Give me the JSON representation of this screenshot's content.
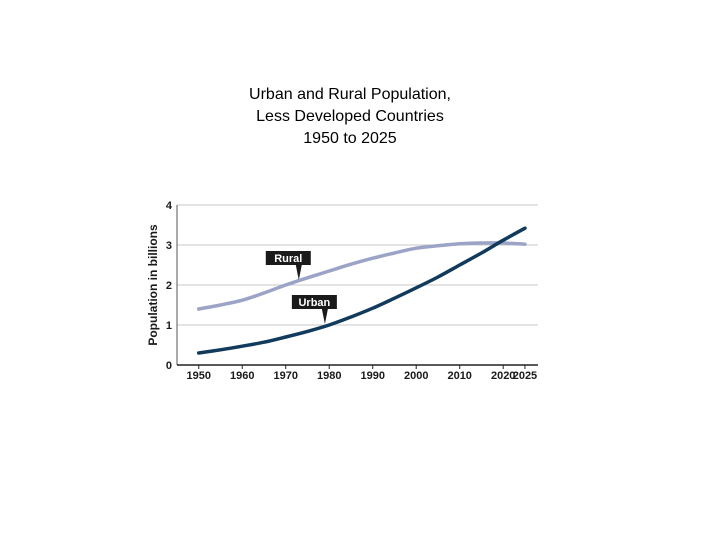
{
  "title": {
    "line1": "Urban and Rural Population,",
    "line2": "Less Developed Countries",
    "line3": "1950 to 2025"
  },
  "chart_data": {
    "type": "line",
    "ylabel": "Population in billions",
    "xlabel": "",
    "ylim": [
      0,
      4
    ],
    "y_ticks": [
      0,
      1,
      2,
      3,
      4
    ],
    "x_ticks": [
      1950,
      1960,
      1970,
      1980,
      1990,
      2000,
      2010,
      2020,
      2025
    ],
    "x_tick_labels": [
      "1950",
      "1960",
      "1970",
      "1980",
      "1990",
      "2000",
      "2010",
      "2020",
      "2025"
    ],
    "grid": true,
    "x": [
      1950,
      1955,
      1960,
      1965,
      1970,
      1975,
      1980,
      1985,
      1990,
      1995,
      2000,
      2005,
      2010,
      2015,
      2020,
      2025
    ],
    "series": [
      {
        "name": "Rural",
        "color": "#9ba3c6",
        "values": [
          1.4,
          1.5,
          1.62,
          1.8,
          2.0,
          2.18,
          2.35,
          2.52,
          2.67,
          2.8,
          2.92,
          2.98,
          3.03,
          3.05,
          3.05,
          3.02
        ]
      },
      {
        "name": "Urban",
        "color": "#113a5c",
        "values": [
          0.3,
          0.38,
          0.47,
          0.57,
          0.7,
          0.84,
          1.0,
          1.2,
          1.42,
          1.67,
          1.93,
          2.2,
          2.5,
          2.8,
          3.12,
          3.42
        ]
      }
    ],
    "labels": [
      {
        "series": "Rural",
        "text": "Rural",
        "at_x": 1973,
        "at_y": 2.1
      },
      {
        "series": "Urban",
        "text": "Urban",
        "at_x": 1979,
        "at_y": 1.0
      }
    ]
  }
}
